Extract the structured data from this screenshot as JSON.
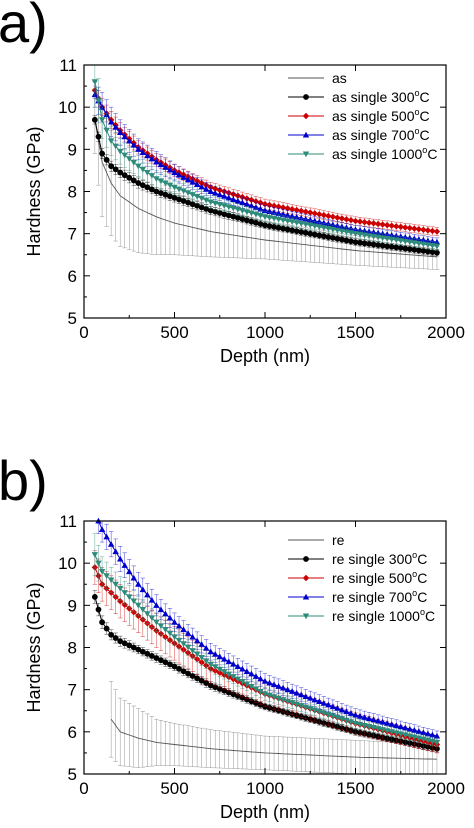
{
  "chart_data": [
    {
      "panel_label": "a)",
      "type": "line",
      "xlabel": "Depth (nm)",
      "ylabel": "Hardness (GPa)",
      "xlim": [
        0,
        2000
      ],
      "ylim": [
        5,
        11
      ],
      "xticks": [
        0,
        500,
        1000,
        1500,
        2000
      ],
      "yticks": [
        5,
        6,
        7,
        8,
        9,
        10,
        11
      ],
      "legend_position": "top-right",
      "series": [
        {
          "name": "as",
          "color": "#808080",
          "marker": "none",
          "x": [
            60,
            100,
            150,
            200,
            300,
            400,
            500,
            700,
            1000,
            1500,
            1950
          ],
          "y": [
            9.7,
            8.7,
            8.2,
            7.9,
            7.6,
            7.4,
            7.25,
            7.05,
            6.85,
            6.6,
            6.45
          ],
          "err": [
            0.8,
            1.3,
            1.25,
            1.2,
            1.05,
            0.9,
            0.75,
            0.6,
            0.45,
            0.35,
            0.3
          ]
        },
        {
          "name": "as single 300°C",
          "color": "#000000",
          "marker": "circle",
          "x": [
            60,
            100,
            150,
            200,
            300,
            400,
            500,
            700,
            1000,
            1500,
            1950
          ],
          "y": [
            9.7,
            8.9,
            8.6,
            8.45,
            8.2,
            8.0,
            7.85,
            7.55,
            7.2,
            6.8,
            6.55
          ],
          "err": [
            0.1,
            0.12,
            0.12,
            0.12,
            0.12,
            0.1,
            0.1,
            0.1,
            0.08,
            0.08,
            0.08
          ]
        },
        {
          "name": "as single 500°C",
          "color": "#cc0000",
          "marker": "diamond",
          "x": [
            60,
            100,
            150,
            200,
            300,
            400,
            500,
            700,
            1000,
            1500,
            1950
          ],
          "y": [
            10.4,
            10.0,
            9.7,
            9.45,
            9.05,
            8.75,
            8.5,
            8.1,
            7.7,
            7.3,
            7.05
          ],
          "err": [
            0.2,
            0.2,
            0.2,
            0.18,
            0.16,
            0.15,
            0.14,
            0.12,
            0.12,
            0.1,
            0.1
          ]
        },
        {
          "name": "as single 700°C",
          "color": "#0000cc",
          "marker": "triangle-up",
          "x": [
            60,
            100,
            150,
            200,
            300,
            400,
            500,
            700,
            1000,
            1500,
            1950
          ],
          "y": [
            10.3,
            10.0,
            9.65,
            9.4,
            9.0,
            8.7,
            8.45,
            8.0,
            7.55,
            7.1,
            6.8
          ],
          "err": [
            0.3,
            0.35,
            0.35,
            0.3,
            0.25,
            0.25,
            0.2,
            0.15,
            0.12,
            0.1,
            0.1
          ]
        },
        {
          "name": "as single 1000°C",
          "color": "#2e8b7a",
          "marker": "triangle-down",
          "x": [
            60,
            100,
            150,
            200,
            300,
            400,
            500,
            700,
            1000,
            1500,
            1950
          ],
          "y": [
            10.6,
            9.7,
            9.2,
            8.95,
            8.6,
            8.3,
            8.1,
            7.75,
            7.4,
            7.0,
            6.7
          ],
          "err": [
            0.6,
            0.45,
            0.35,
            0.3,
            0.25,
            0.2,
            0.18,
            0.15,
            0.12,
            0.1,
            0.1
          ]
        }
      ]
    },
    {
      "panel_label": "b)",
      "type": "line",
      "xlabel": "Depth (nm)",
      "ylabel": "Hardness (GPa)",
      "xlim": [
        0,
        2000
      ],
      "ylim": [
        5,
        11
      ],
      "xticks": [
        0,
        500,
        1000,
        1500,
        2000
      ],
      "yticks": [
        5,
        6,
        7,
        8,
        9,
        10,
        11
      ],
      "legend_position": "top-right",
      "series": [
        {
          "name": "re",
          "color": "#808080",
          "marker": "none",
          "x": [
            150,
            200,
            300,
            400,
            500,
            700,
            1000,
            1500,
            1950
          ],
          "y": [
            6.3,
            6.0,
            5.85,
            5.75,
            5.7,
            5.6,
            5.5,
            5.4,
            5.35
          ],
          "err": [
            0.9,
            0.8,
            0.7,
            0.55,
            0.5,
            0.45,
            0.4,
            0.4,
            0.35
          ]
        },
        {
          "name": "re single 300°C",
          "color": "#000000",
          "marker": "circle",
          "x": [
            60,
            100,
            150,
            200,
            300,
            400,
            500,
            700,
            1000,
            1500,
            1950
          ],
          "y": [
            9.2,
            8.6,
            8.3,
            8.15,
            7.95,
            7.75,
            7.55,
            7.1,
            6.6,
            6.0,
            5.6
          ],
          "err": [
            0.15,
            0.15,
            0.12,
            0.12,
            0.1,
            0.1,
            0.1,
            0.1,
            0.08,
            0.08,
            0.08
          ]
        },
        {
          "name": "re single 500°C",
          "color": "#cc0000",
          "marker": "diamond",
          "x": [
            60,
            100,
            150,
            200,
            300,
            400,
            500,
            700,
            1000,
            1500,
            1950
          ],
          "y": [
            9.9,
            9.5,
            9.3,
            9.1,
            8.75,
            8.4,
            8.1,
            7.5,
            6.9,
            6.2,
            5.7
          ],
          "err": [
            0.4,
            0.4,
            0.4,
            0.4,
            0.4,
            0.4,
            0.4,
            0.35,
            0.3,
            0.25,
            0.2
          ]
        },
        {
          "name": "re single 700°C",
          "color": "#0000cc",
          "marker": "triangle-up",
          "x": [
            80,
            100,
            150,
            200,
            300,
            400,
            500,
            700,
            1000,
            1500,
            1950
          ],
          "y": [
            11.0,
            10.8,
            10.45,
            10.1,
            9.5,
            9.0,
            8.6,
            7.9,
            7.2,
            6.4,
            5.9
          ],
          "err": [
            0.3,
            0.3,
            0.3,
            0.3,
            0.28,
            0.25,
            0.22,
            0.2,
            0.18,
            0.15,
            0.12
          ]
        },
        {
          "name": "re single 1000°C",
          "color": "#2e8b7a",
          "marker": "triangle-down",
          "x": [
            60,
            100,
            150,
            200,
            300,
            400,
            500,
            700,
            1000,
            1500,
            1950
          ],
          "y": [
            10.2,
            9.8,
            9.6,
            9.4,
            9.0,
            8.6,
            8.25,
            7.6,
            6.9,
            6.2,
            5.75
          ],
          "err": [
            0.5,
            0.35,
            0.3,
            0.28,
            0.25,
            0.22,
            0.2,
            0.18,
            0.15,
            0.12,
            0.1
          ]
        }
      ]
    }
  ]
}
